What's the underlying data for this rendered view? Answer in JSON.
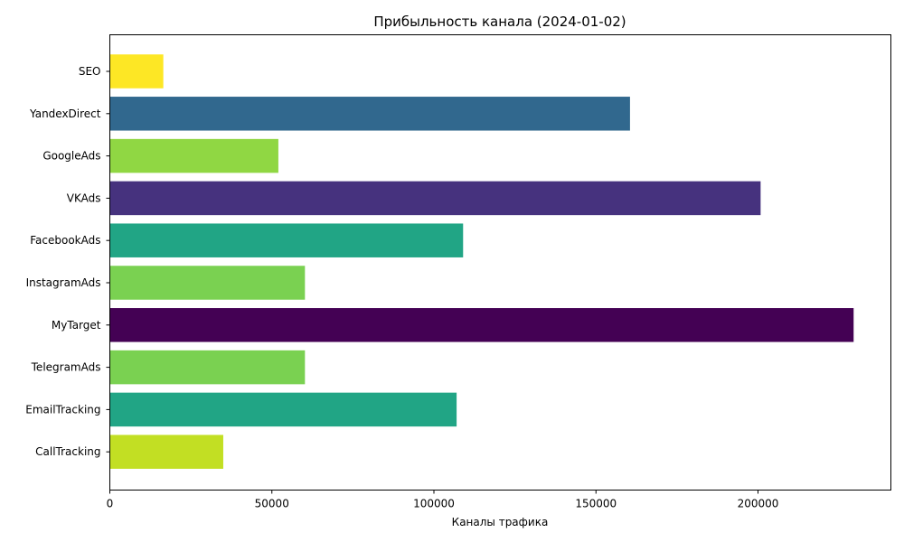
{
  "chart_data": {
    "type": "bar",
    "orientation": "horizontal",
    "title": "Прибыльность канала (2024-01-02)",
    "xlabel": "Каналы трафика",
    "ylabel": "",
    "xlim": [
      0,
      241000
    ],
    "xticks": [
      0,
      50000,
      100000,
      150000,
      200000
    ],
    "xtick_labels": [
      "0",
      "50000",
      "100000",
      "150000",
      "200000"
    ],
    "grid": false,
    "categories": [
      "SEO",
      "YandexDirect",
      "GoogleAds",
      "VKAds",
      "FacebookAds",
      "InstagramAds",
      "MyTarget",
      "TelegramAds",
      "EmailTracking",
      "CallTracking"
    ],
    "values": [
      16500,
      160500,
      52000,
      200800,
      109000,
      60200,
      229500,
      60200,
      107000,
      35000
    ],
    "colors": [
      "#fde725",
      "#31688e",
      "#90d743",
      "#46327e",
      "#21a585",
      "#7ad151",
      "#440154",
      "#7ad151",
      "#21a585",
      "#c2df23"
    ]
  }
}
